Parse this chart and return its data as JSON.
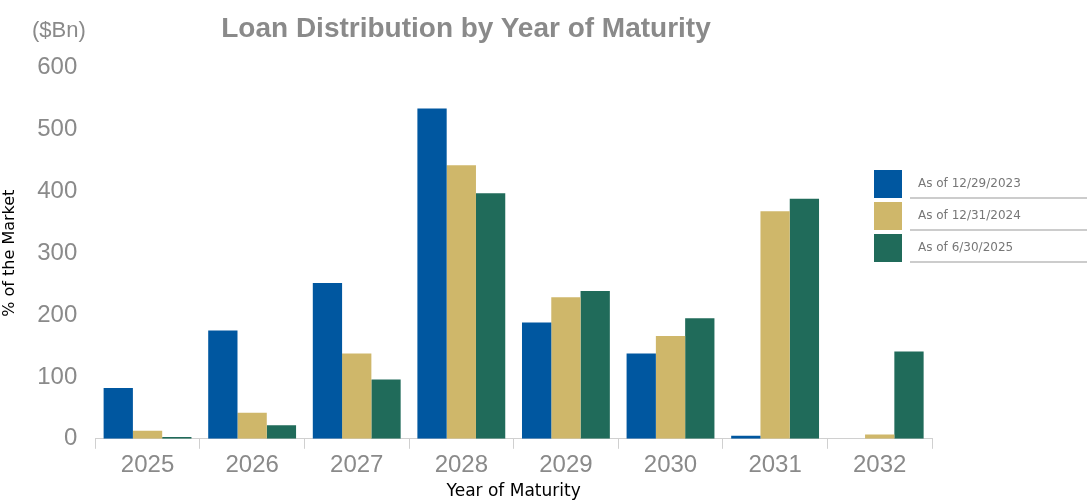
{
  "chart_data": {
    "type": "bar",
    "title": "Loan Distribution by Year of Maturity",
    "xlabel": "Year of Maturity",
    "ylabel": "% of the Market",
    "annotations": [
      "($Bn)"
    ],
    "categories": [
      "2025",
      "2026",
      "2027",
      "2028",
      "2029",
      "2030",
      "2031",
      "2032"
    ],
    "series": [
      {
        "name": "As of 12/29/2023",
        "color": "#0057a0",
        "values": [
          82,
          175,
          252,
          534,
          188,
          138,
          5,
          null
        ]
      },
      {
        "name": "As of 12/31/2024",
        "color": "#cfb76a",
        "values": [
          13,
          42,
          138,
          442,
          229,
          166,
          368,
          7
        ]
      },
      {
        "name": "As of 6/30/2025",
        "color": "#206b5a",
        "values": [
          3,
          22,
          96,
          397,
          239,
          195,
          388,
          141
        ]
      }
    ],
    "ylim": [
      0,
      600
    ],
    "yticks": [
      0,
      100,
      200,
      300,
      400,
      500,
      600
    ],
    "grid": false,
    "legend": "right"
  }
}
